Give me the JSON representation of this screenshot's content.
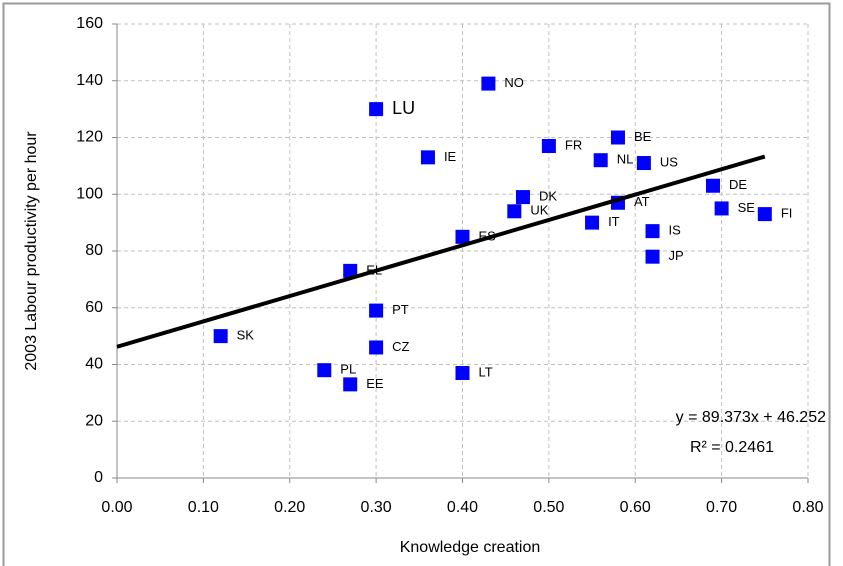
{
  "chart_data": {
    "type": "scatter",
    "xlabel": "Knowledge creation",
    "ylabel": "2003 Labour productivity per hour",
    "xlim": [
      0,
      0.8
    ],
    "ylim": [
      0,
      160
    ],
    "xticks": [
      {
        "value": 0,
        "label": "0.00"
      },
      {
        "value": 0.1,
        "label": "0.10"
      },
      {
        "value": 0.2,
        "label": "0.20"
      },
      {
        "value": 0.3,
        "label": "0.30"
      },
      {
        "value": 0.4,
        "label": "0.40"
      },
      {
        "value": 0.5,
        "label": "0.50"
      },
      {
        "value": 0.6,
        "label": "0.60"
      },
      {
        "value": 0.7,
        "label": "0.70"
      },
      {
        "value": 0.8,
        "label": "0.80"
      }
    ],
    "yticks": [
      0,
      20,
      40,
      60,
      80,
      100,
      120,
      140,
      160
    ],
    "grid": true,
    "series": [
      {
        "color": "#0000ff",
        "labels": [
          "NO",
          "LU",
          "IE",
          "FR",
          "BE",
          "NL",
          "US",
          "DK",
          "UK",
          "AT",
          "IT",
          "DE",
          "SE",
          "FI",
          "IS",
          "JP",
          "ES",
          "EL",
          "PT",
          "SK",
          "CZ",
          "PL",
          "EE",
          "LT"
        ],
        "x": [
          0.43,
          0.3,
          0.36,
          0.5,
          0.58,
          0.56,
          0.61,
          0.47,
          0.46,
          0.58,
          0.55,
          0.69,
          0.7,
          0.75,
          0.62,
          0.62,
          0.4,
          0.27,
          0.3,
          0.12,
          0.3,
          0.24,
          0.27,
          0.4
        ],
        "values": [
          139,
          130,
          113,
          117,
          120,
          112,
          111,
          99,
          94,
          97,
          90,
          103,
          95,
          93,
          87,
          78,
          85,
          73,
          59,
          50,
          46,
          38,
          33,
          37
        ]
      }
    ],
    "trendline": {
      "slope": 89.373,
      "intercept": 46.252,
      "equation": "y = 89.373x + 46.252",
      "r_squared": "R² = 0.2461",
      "color": "#000000"
    }
  }
}
